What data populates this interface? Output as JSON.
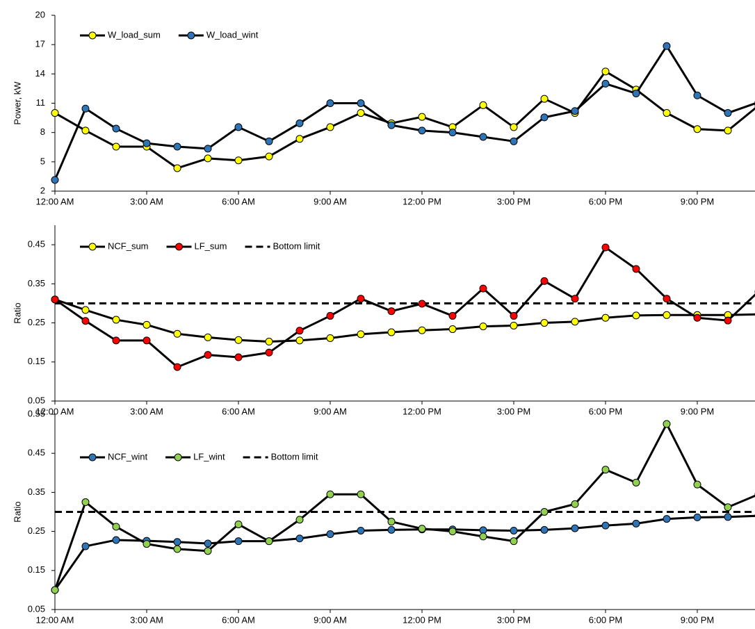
{
  "chart_data": [
    {
      "type": "line",
      "y_label": "Power, kW",
      "categories": [
        "12:00 AM",
        null,
        null,
        "3:00 AM",
        null,
        null,
        "6:00 AM",
        null,
        null,
        "9:00 AM",
        null,
        null,
        "12:00 PM",
        null,
        null,
        "3:00 PM",
        null,
        null,
        "6:00 PM",
        null,
        null,
        "9:00 PM",
        null,
        null
      ],
      "ylim": [
        2,
        20
      ],
      "yticks": [
        2,
        5,
        8,
        11,
        14,
        17,
        20
      ],
      "grid": false,
      "series": [
        {
          "name": "W_load_sum",
          "color": "#ffff00",
          "values": [
            10.0,
            8.2,
            6.55,
            6.55,
            4.35,
            5.35,
            5.15,
            5.55,
            7.35,
            8.55,
            10.0,
            8.95,
            9.6,
            8.55,
            10.8,
            8.55,
            11.45,
            10.0,
            14.25,
            12.4,
            10.0,
            8.35,
            8.2,
            10.75
          ]
        },
        {
          "name": "W_load_wint",
          "color": "#2e75b6",
          "values": [
            3.15,
            10.45,
            8.4,
            6.9,
            6.55,
            6.35,
            8.55,
            7.1,
            8.95,
            11.0,
            11.0,
            8.75,
            8.2,
            8.0,
            7.55,
            7.1,
            9.55,
            10.2,
            13.0,
            12.0,
            16.85,
            11.8,
            10.0,
            11.1
          ]
        }
      ]
    },
    {
      "type": "line",
      "y_label": "Ratio",
      "categories": [
        "12:00 AM",
        null,
        null,
        "3:00 AM",
        null,
        null,
        "6:00 AM",
        null,
        null,
        "9:00 AM",
        null,
        null,
        "12:00 PM",
        null,
        null,
        "3:00 PM",
        null,
        null,
        "6:00 PM",
        null,
        null,
        "9:00 PM",
        null,
        null
      ],
      "ylim": [
        0.05,
        0.5
      ],
      "yticks": [
        0.05,
        0.15,
        0.25,
        0.35,
        0.45
      ],
      "grid": false,
      "series": [
        {
          "name": "NCF_sum",
          "color": "#ffff00",
          "values": [
            0.31,
            0.283,
            0.258,
            0.245,
            0.222,
            0.213,
            0.206,
            0.202,
            0.205,
            0.211,
            0.221,
            0.226,
            0.231,
            0.234,
            0.241,
            0.243,
            0.25,
            0.253,
            0.263,
            0.269,
            0.27,
            0.27,
            0.27,
            0.272
          ]
        },
        {
          "name": "LF_sum",
          "color": "#ff0000",
          "values": [
            0.31,
            0.255,
            0.205,
            0.205,
            0.137,
            0.168,
            0.162,
            0.174,
            0.23,
            0.268,
            0.312,
            0.28,
            0.299,
            0.268,
            0.338,
            0.268,
            0.357,
            0.312,
            0.443,
            0.388,
            0.312,
            0.263,
            0.256,
            0.33
          ]
        }
      ],
      "reference_line": {
        "name": "Bottom limit",
        "value": 0.3
      }
    },
    {
      "type": "line",
      "y_label": "Ratio",
      "categories": [
        "12:00 AM",
        null,
        null,
        "3:00 AM",
        null,
        null,
        "6:00 AM",
        null,
        null,
        "9:00 AM",
        null,
        null,
        "12:00 PM",
        null,
        null,
        "3:00 PM",
        null,
        null,
        "6:00 PM",
        null,
        null,
        "9:00 PM",
        null,
        null
      ],
      "ylim": [
        0.05,
        0.55
      ],
      "yticks": [
        0.05,
        0.15,
        0.25,
        0.35,
        0.45,
        0.55
      ],
      "grid": false,
      "series": [
        {
          "name": "NCF_wint",
          "color": "#2e75b6",
          "values": [
            0.1,
            0.212,
            0.228,
            0.226,
            0.223,
            0.219,
            0.225,
            0.225,
            0.232,
            0.243,
            0.252,
            0.254,
            0.255,
            0.255,
            0.253,
            0.252,
            0.254,
            0.258,
            0.265,
            0.27,
            0.282,
            0.286,
            0.287,
            0.29
          ]
        },
        {
          "name": "LF_wint",
          "color": "#92d050",
          "values": [
            0.1,
            0.325,
            0.262,
            0.218,
            0.205,
            0.2,
            0.268,
            0.225,
            0.28,
            0.345,
            0.345,
            0.275,
            0.257,
            0.25,
            0.237,
            0.225,
            0.3,
            0.32,
            0.408,
            0.375,
            0.525,
            0.37,
            0.312,
            0.345
          ]
        }
      ],
      "reference_line": {
        "name": "Bottom limit",
        "value": 0.3
      }
    }
  ]
}
